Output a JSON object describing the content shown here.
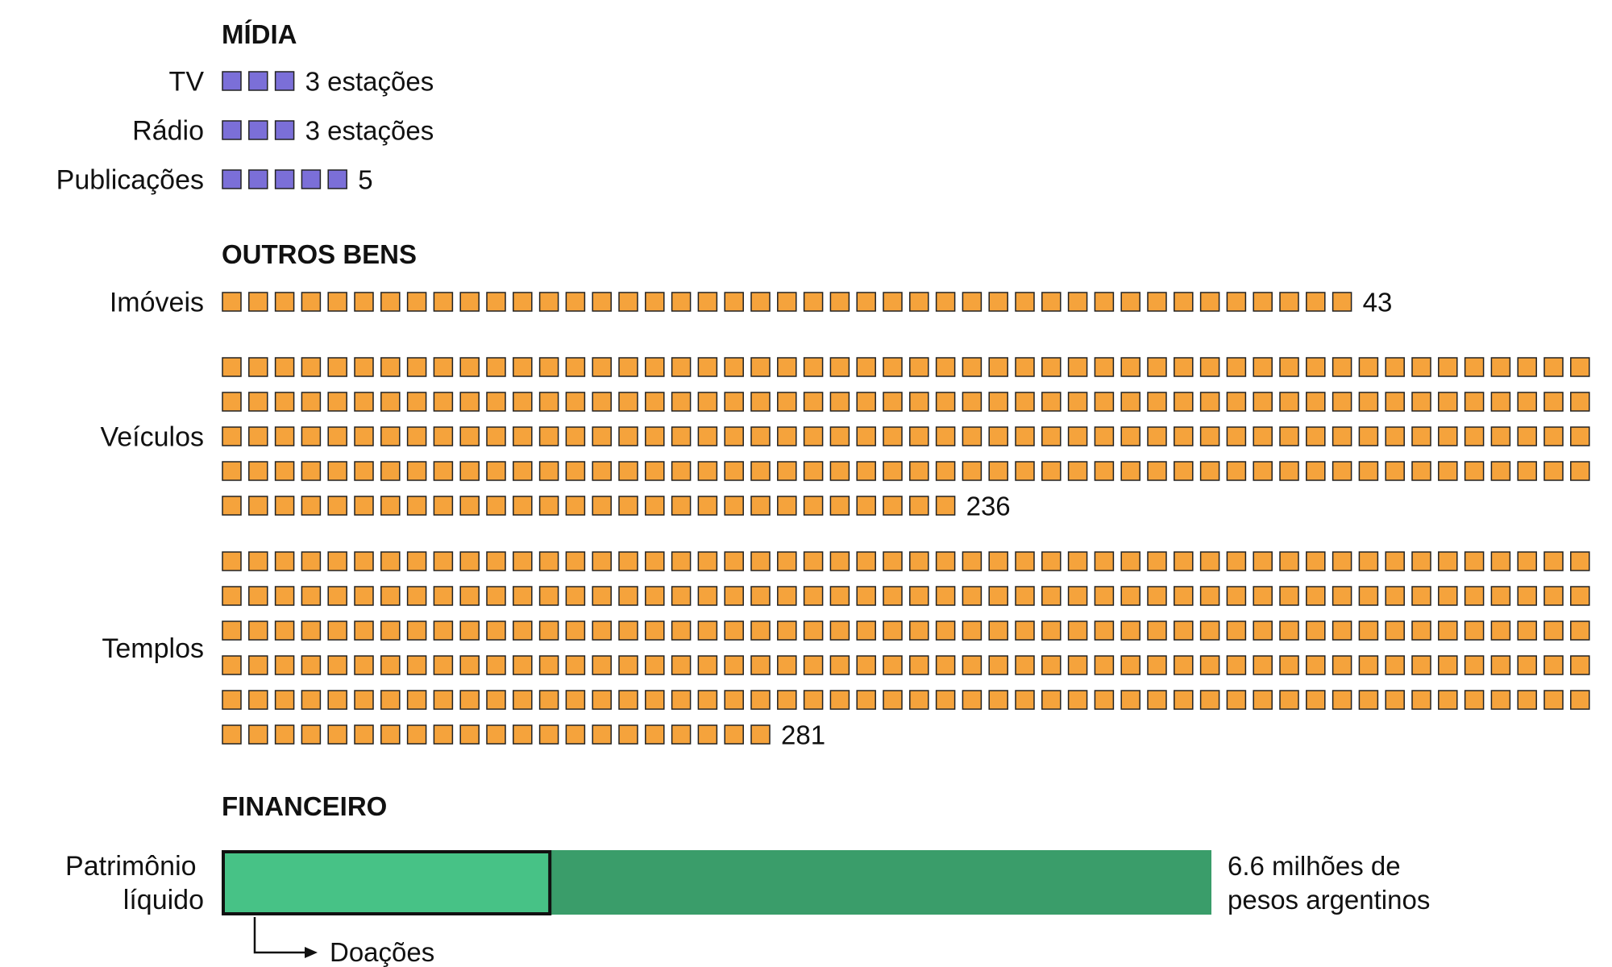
{
  "colors": {
    "media": "#7b6fd8",
    "assets": "#f5a33c",
    "outline": "#222222",
    "net_worth": "#3a9d6a",
    "donations": "#47c286",
    "text": "#111111"
  },
  "chart_data": {
    "type": "pictogram",
    "unit": "one square per item",
    "sections": [
      {
        "id": "midia",
        "title": "MÍDIA",
        "color": "#7b6fd8",
        "rows": [
          {
            "label": "TV",
            "count": 3,
            "value_label": "3 estações"
          },
          {
            "label": "Rádio",
            "count": 3,
            "value_label": "3 estações"
          },
          {
            "label": "Publicações",
            "count": 5,
            "value_label": "5"
          }
        ]
      },
      {
        "id": "outros-bens",
        "title": "OUTROS BENS",
        "color": "#f5a33c",
        "rows": [
          {
            "label": "Imóveis",
            "count": 43,
            "value_label": "43"
          },
          {
            "label": "Veículos",
            "count": 236,
            "value_label": "236"
          },
          {
            "label": "Templos",
            "count": 281,
            "value_label": "281"
          }
        ]
      }
    ],
    "financial": {
      "title": "FINANCEIRO",
      "label_lines": [
        "Patrimônio",
        "líquido"
      ],
      "total_value_lines": [
        "6.6 milhões de",
        "pesos argentinos"
      ],
      "total_millions": 6.6,
      "donations_label": "Doações",
      "donations_share": 0.33
    }
  }
}
